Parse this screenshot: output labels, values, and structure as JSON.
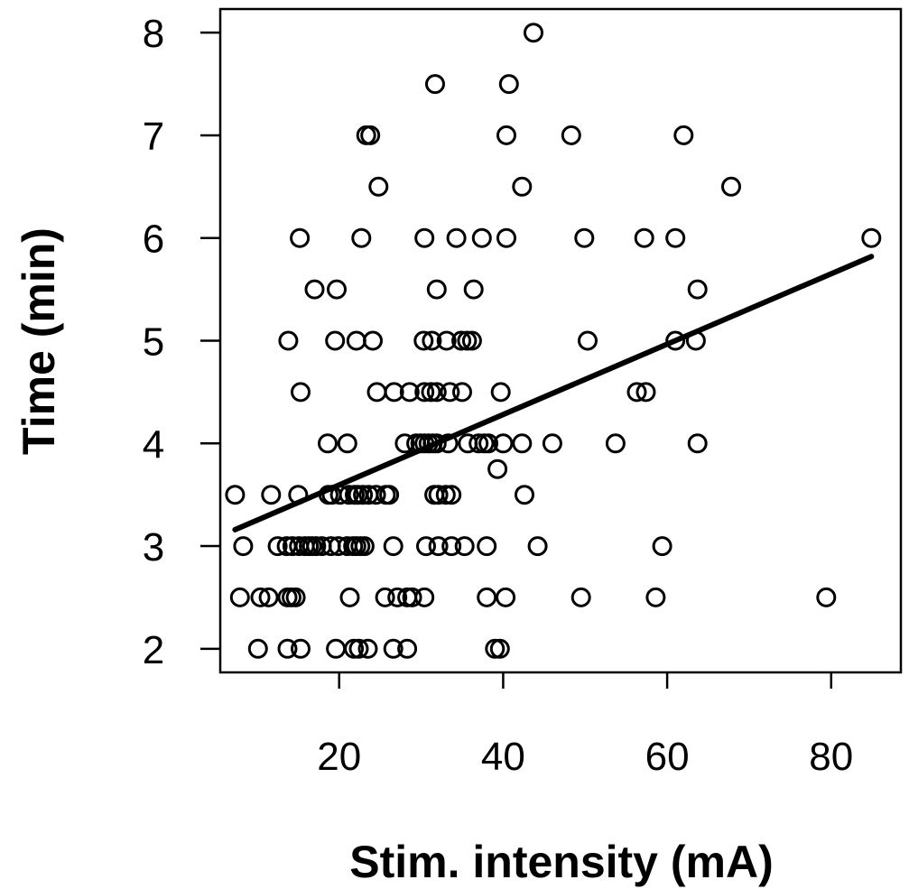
{
  "chart_data": {
    "type": "scatter",
    "title": "",
    "xlabel": "Stim. intensity (mA)",
    "ylabel": "Time (min)",
    "xlim": [
      5.5,
      88.5
    ],
    "ylim": [
      1.77,
      8.23
    ],
    "xticks": [
      20,
      40,
      60,
      80
    ],
    "yticks": [
      2,
      3,
      4,
      5,
      6,
      7,
      8
    ],
    "grid": false,
    "legend": "none",
    "point_style": "open-circle",
    "color": "#000000",
    "series": [
      {
        "points": [
          [
            43.7,
            8.0
          ],
          [
            31.7,
            7.5
          ],
          [
            40.7,
            7.5
          ],
          [
            23.3,
            7.0
          ],
          [
            23.8,
            7.0
          ],
          [
            40.4,
            7.0
          ],
          [
            48.3,
            7.0
          ],
          [
            62.0,
            7.0
          ],
          [
            24.8,
            6.5
          ],
          [
            42.3,
            6.5
          ],
          [
            67.8,
            6.5
          ],
          [
            15.2,
            6.0
          ],
          [
            22.7,
            6.0
          ],
          [
            30.4,
            6.0
          ],
          [
            34.3,
            6.0
          ],
          [
            37.4,
            6.0
          ],
          [
            40.4,
            6.0
          ],
          [
            49.9,
            6.0
          ],
          [
            57.2,
            6.0
          ],
          [
            61.0,
            6.0
          ],
          [
            84.9,
            6.0
          ],
          [
            17.0,
            5.5
          ],
          [
            19.7,
            5.5
          ],
          [
            31.9,
            5.5
          ],
          [
            36.4,
            5.5
          ],
          [
            63.7,
            5.5
          ],
          [
            13.8,
            5.0
          ],
          [
            19.5,
            5.0
          ],
          [
            22.1,
            5.0
          ],
          [
            24.1,
            5.0
          ],
          [
            30.3,
            5.0
          ],
          [
            31.3,
            5.0
          ],
          [
            33.1,
            5.0
          ],
          [
            34.9,
            5.0
          ],
          [
            35.6,
            5.0
          ],
          [
            36.2,
            5.0
          ],
          [
            50.3,
            5.0
          ],
          [
            61.0,
            5.0
          ],
          [
            63.5,
            5.0
          ],
          [
            15.3,
            4.5
          ],
          [
            24.6,
            4.5
          ],
          [
            26.7,
            4.5
          ],
          [
            28.6,
            4.5
          ],
          [
            30.4,
            4.5
          ],
          [
            31.2,
            4.5
          ],
          [
            31.9,
            4.5
          ],
          [
            33.5,
            4.5
          ],
          [
            35.0,
            4.5
          ],
          [
            39.7,
            4.5
          ],
          [
            56.3,
            4.5
          ],
          [
            57.4,
            4.5
          ],
          [
            18.6,
            4.0
          ],
          [
            21.0,
            4.0
          ],
          [
            28.0,
            4.0
          ],
          [
            29.4,
            4.0
          ],
          [
            29.9,
            4.0
          ],
          [
            30.4,
            4.0
          ],
          [
            30.9,
            4.0
          ],
          [
            31.4,
            4.0
          ],
          [
            31.9,
            4.0
          ],
          [
            33.3,
            4.0
          ],
          [
            35.7,
            4.0
          ],
          [
            37.0,
            4.0
          ],
          [
            37.7,
            4.0
          ],
          [
            38.2,
            4.0
          ],
          [
            40.0,
            4.0
          ],
          [
            42.3,
            4.0
          ],
          [
            46.0,
            4.0
          ],
          [
            53.7,
            4.0
          ],
          [
            63.7,
            4.0
          ],
          [
            39.3,
            3.75
          ],
          [
            7.3,
            3.5
          ],
          [
            11.7,
            3.5
          ],
          [
            15.0,
            3.5
          ],
          [
            18.7,
            3.5
          ],
          [
            19.1,
            3.5
          ],
          [
            20.1,
            3.5
          ],
          [
            21.2,
            3.5
          ],
          [
            21.9,
            3.5
          ],
          [
            22.3,
            3.5
          ],
          [
            22.9,
            3.5
          ],
          [
            23.6,
            3.5
          ],
          [
            24.5,
            3.5
          ],
          [
            25.7,
            3.5
          ],
          [
            26.1,
            3.5
          ],
          [
            31.6,
            3.5
          ],
          [
            32.1,
            3.5
          ],
          [
            33.0,
            3.5
          ],
          [
            33.7,
            3.5
          ],
          [
            42.6,
            3.5
          ],
          [
            8.3,
            3.0
          ],
          [
            12.5,
            3.0
          ],
          [
            13.6,
            3.0
          ],
          [
            14.3,
            3.0
          ],
          [
            15.1,
            3.0
          ],
          [
            15.8,
            3.0
          ],
          [
            16.3,
            3.0
          ],
          [
            16.7,
            3.0
          ],
          [
            17.2,
            3.0
          ],
          [
            17.9,
            3.0
          ],
          [
            19.0,
            3.0
          ],
          [
            19.9,
            3.0
          ],
          [
            21.0,
            3.0
          ],
          [
            21.7,
            3.0
          ],
          [
            22.1,
            3.0
          ],
          [
            22.6,
            3.0
          ],
          [
            23.1,
            3.0
          ],
          [
            26.6,
            3.0
          ],
          [
            30.6,
            3.0
          ],
          [
            32.1,
            3.0
          ],
          [
            33.7,
            3.0
          ],
          [
            35.3,
            3.0
          ],
          [
            38.0,
            3.0
          ],
          [
            44.2,
            3.0
          ],
          [
            59.4,
            3.0
          ],
          [
            7.9,
            2.5
          ],
          [
            10.4,
            2.5
          ],
          [
            11.4,
            2.5
          ],
          [
            13.7,
            2.5
          ],
          [
            14.2,
            2.5
          ],
          [
            14.7,
            2.5
          ],
          [
            21.3,
            2.5
          ],
          [
            25.6,
            2.5
          ],
          [
            27.1,
            2.5
          ],
          [
            28.3,
            2.5
          ],
          [
            28.9,
            2.5
          ],
          [
            30.4,
            2.5
          ],
          [
            38.0,
            2.5
          ],
          [
            40.3,
            2.5
          ],
          [
            49.5,
            2.5
          ],
          [
            58.6,
            2.5
          ],
          [
            79.4,
            2.5
          ],
          [
            10.1,
            2.0
          ],
          [
            13.7,
            2.0
          ],
          [
            15.3,
            2.0
          ],
          [
            19.6,
            2.0
          ],
          [
            21.8,
            2.0
          ],
          [
            22.4,
            2.0
          ],
          [
            23.5,
            2.0
          ],
          [
            26.6,
            2.0
          ],
          [
            28.3,
            2.0
          ],
          [
            39.0,
            2.0
          ],
          [
            39.6,
            2.0
          ]
        ]
      }
    ],
    "fit_line": {
      "x": [
        7.3,
        84.9
      ],
      "y": [
        3.16,
        5.82
      ]
    }
  }
}
